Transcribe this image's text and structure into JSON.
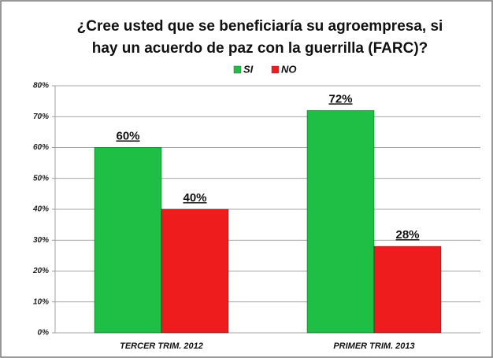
{
  "chart_data": {
    "type": "bar",
    "title": [
      "¿Cree usted que se beneficiaría su agroempresa, si",
      "hay un acuerdo de paz con la guerrilla (FARC)?"
    ],
    "categories": [
      "TERCER TRIM. 2012",
      "PRIMER TRIM. 2013"
    ],
    "series": [
      {
        "name": "SI",
        "color": "#1fbf45",
        "values": [
          60,
          72
        ],
        "value_labels": [
          "60%",
          "72%"
        ]
      },
      {
        "name": "NO",
        "color": "#ee1c1c",
        "values": [
          40,
          28
        ],
        "value_labels": [
          "40%",
          "28%"
        ]
      }
    ],
    "ylim": [
      0,
      80
    ],
    "yticks": [
      {
        "value": 0,
        "label": "0%"
      },
      {
        "value": 10,
        "label": "10%"
      },
      {
        "value": 20,
        "label": "20%"
      },
      {
        "value": 30,
        "label": "30%"
      },
      {
        "value": 40,
        "label": "40%"
      },
      {
        "value": 50,
        "label": "50%"
      },
      {
        "value": 60,
        "label": "60%"
      },
      {
        "value": 70,
        "label": "70%"
      },
      {
        "value": 80,
        "label": "80%"
      }
    ],
    "grid": true,
    "legend": "top"
  }
}
